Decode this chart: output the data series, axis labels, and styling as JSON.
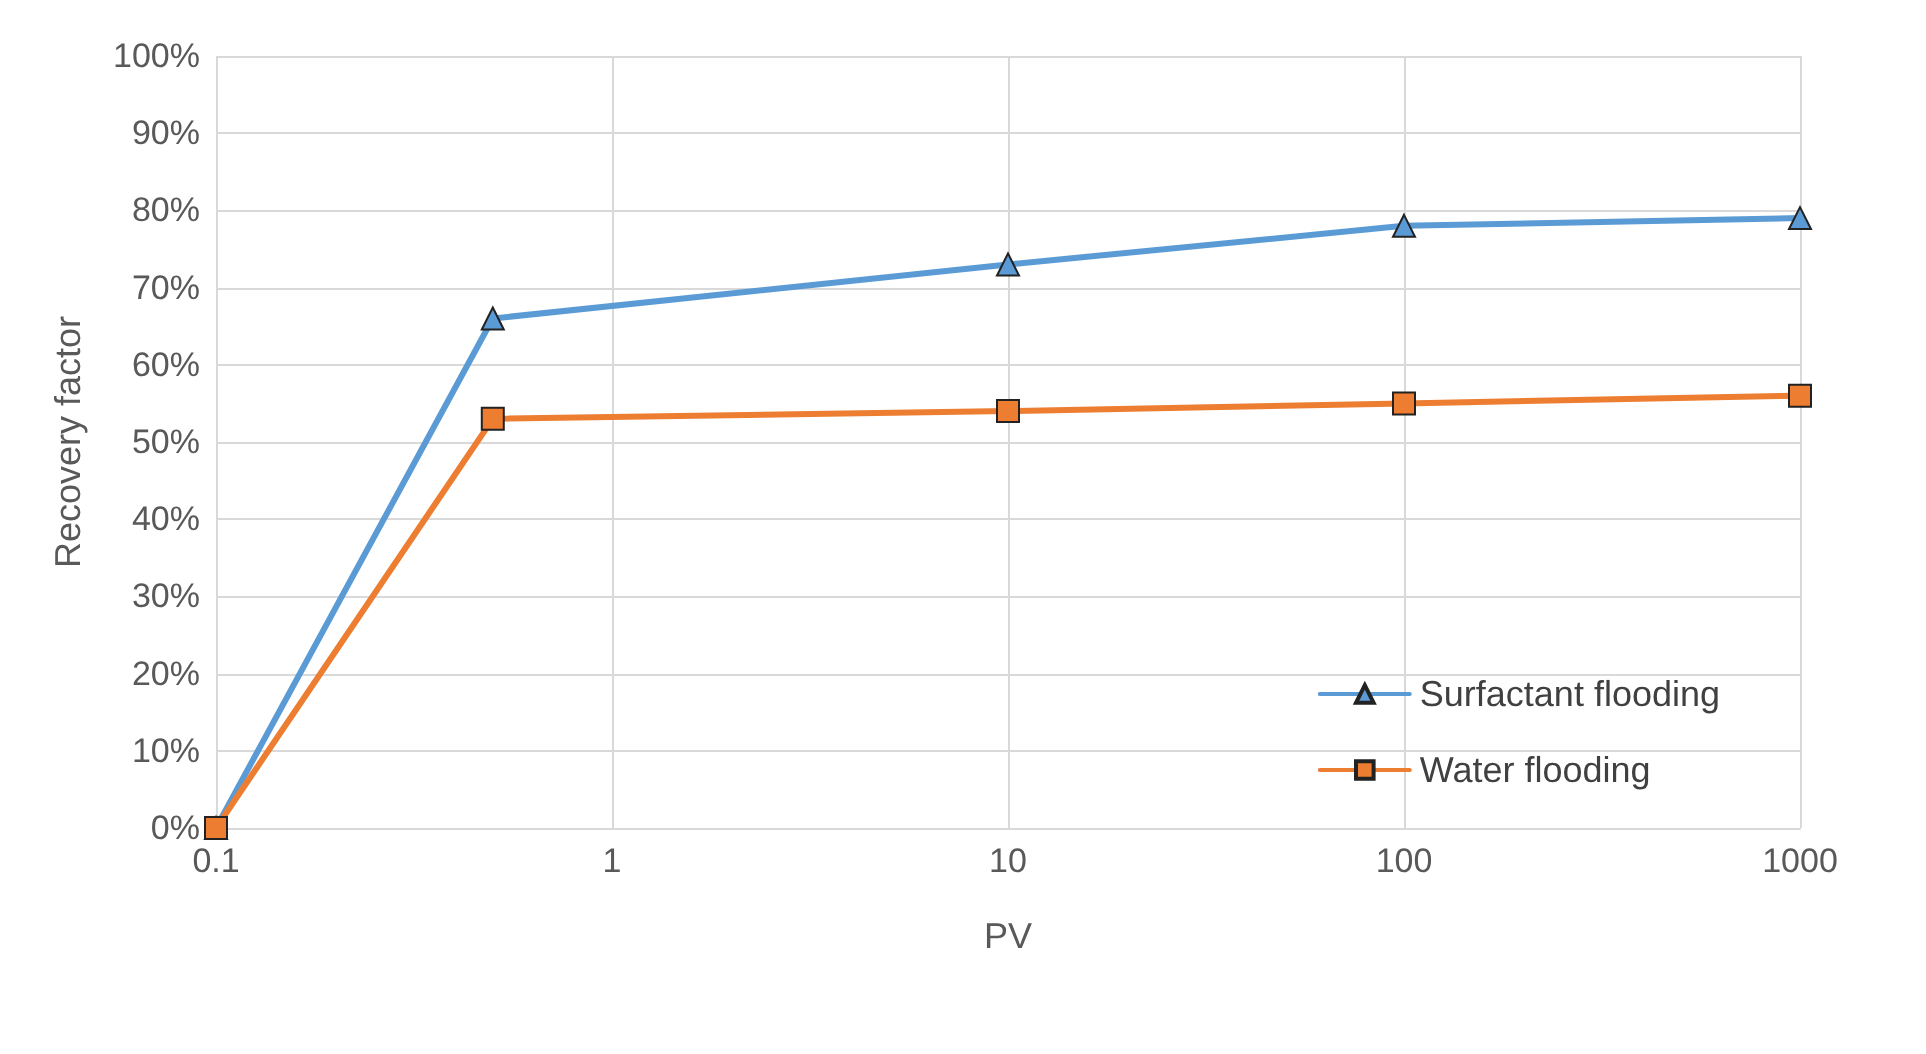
{
  "chart_data": {
    "type": "line",
    "xlabel": "PV",
    "ylabel": "Recovery factor",
    "x": [
      0.1,
      0.5,
      10,
      100,
      1000
    ],
    "log": "x",
    "xlim": [
      0.1,
      1000
    ],
    "xticks": [
      0.1,
      1,
      10,
      100,
      1000
    ],
    "ylim": [
      0,
      100
    ],
    "yticks": [
      {
        "value": 0,
        "label": "0%"
      },
      {
        "value": 10,
        "label": "10%"
      },
      {
        "value": 20,
        "label": "20%"
      },
      {
        "value": 30,
        "label": "30%"
      },
      {
        "value": 40,
        "label": "40%"
      },
      {
        "value": 50,
        "label": "50%"
      },
      {
        "value": 60,
        "label": "60%"
      },
      {
        "value": 70,
        "label": "70%"
      },
      {
        "value": 80,
        "label": "80%"
      },
      {
        "value": 90,
        "label": "90%"
      },
      {
        "value": 100,
        "label": "100%"
      }
    ],
    "grid": true,
    "legend": "bottom right",
    "line_style": "solid",
    "series": [
      {
        "name": "Surfactant flooding",
        "color": "#5b9bd5",
        "marker": "triangle",
        "values": [
          0,
          66,
          73,
          78,
          79
        ]
      },
      {
        "name": "Water flooding",
        "color": "#ed7d31",
        "marker": "square",
        "values": [
          0,
          53,
          54,
          55,
          56
        ]
      }
    ]
  }
}
